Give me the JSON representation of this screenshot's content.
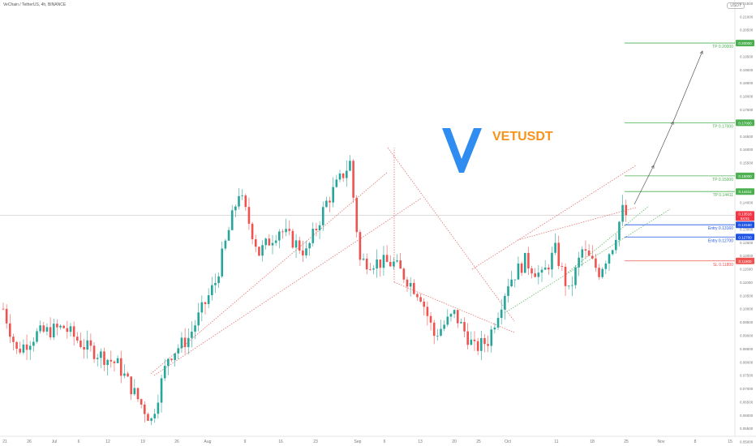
{
  "header": {
    "symbol_line": "VeChain / TetherUS, 4h, BINANCE",
    "currency_button": "USDT"
  },
  "brand": {
    "ticker": "VETUSDT",
    "logo_icon": "vechain-v-logo-icon",
    "logo_color": "#2f8cf0"
  },
  "colors": {
    "up": "#26a69a",
    "down": "#ef5350",
    "tp": "#4caf50",
    "sl": "#ef5350",
    "entry": "#1e53e5",
    "current": "#f23645"
  },
  "chart_data": {
    "type": "candlestick",
    "title": "VETUSDT",
    "x_axis": {
      "tick_labels": [
        "21",
        "26",
        "Jul",
        "6",
        "12",
        "19",
        "26",
        "Aug",
        "9",
        "16",
        "23",
        "Sep",
        "6",
        "13",
        "20",
        "25",
        "Oct",
        "11",
        "18",
        "25",
        "Nov",
        "8",
        "15"
      ]
    },
    "y_axis": {
      "range": [
        0.052,
        0.2162
      ],
      "tick_labels": [
        "0.21500",
        "0.21000",
        "0.20500",
        "0.20000",
        "0.19500",
        "0.19000",
        "0.18500",
        "0.18000",
        "0.17500",
        "0.17000",
        "0.16500",
        "0.16000",
        "0.15500",
        "0.15000",
        "0.14500",
        "0.14000",
        "0.13500",
        "0.13000",
        "0.12500",
        "0.12000",
        "0.11500",
        "0.11000",
        "0.10500",
        "0.10000",
        "0.09500",
        "0.09000",
        "0.08500",
        "0.08000",
        "0.07500",
        "0.07000",
        "0.06500",
        "0.06000",
        "0.05500",
        "0.05000"
      ]
    },
    "price_path": [
      {
        "t": 0,
        "v": 0.1
      },
      {
        "t": 4,
        "v": 0.084
      },
      {
        "t": 10,
        "v": 0.0905
      },
      {
        "t": 18,
        "v": 0.093
      },
      {
        "t": 24,
        "v": 0.086
      },
      {
        "t": 34,
        "v": 0.079
      },
      {
        "t": 40,
        "v": 0.066
      },
      {
        "t": 44,
        "v": 0.058
      },
      {
        "t": 49,
        "v": 0.082
      },
      {
        "t": 55,
        "v": 0.089
      },
      {
        "t": 63,
        "v": 0.11
      },
      {
        "t": 70,
        "v": 0.144
      },
      {
        "t": 76,
        "v": 0.121
      },
      {
        "t": 82,
        "v": 0.13
      },
      {
        "t": 90,
        "v": 0.121
      },
      {
        "t": 96,
        "v": 0.14
      },
      {
        "t": 103,
        "v": 0.155
      },
      {
        "t": 104,
        "v": 0.142
      },
      {
        "t": 106,
        "v": 0.118
      },
      {
        "t": 116,
        "v": 0.117
      },
      {
        "t": 124,
        "v": 0.105
      },
      {
        "t": 128,
        "v": 0.09
      },
      {
        "t": 134,
        "v": 0.098
      },
      {
        "t": 140,
        "v": 0.085
      },
      {
        "t": 144,
        "v": 0.088
      },
      {
        "t": 150,
        "v": 0.11
      },
      {
        "t": 155,
        "v": 0.118
      },
      {
        "t": 160,
        "v": 0.112
      },
      {
        "t": 164,
        "v": 0.122
      },
      {
        "t": 168,
        "v": 0.106
      },
      {
        "t": 172,
        "v": 0.122
      },
      {
        "t": 177,
        "v": 0.114
      },
      {
        "t": 181,
        "v": 0.124
      },
      {
        "t": 184,
        "v": 0.137
      },
      {
        "t": 185,
        "v": 0.1352
      }
    ],
    "annotation_lines": [
      {
        "label": "TP 0.20000",
        "value": 0.2,
        "kind": "tp",
        "tag": "0.20000"
      },
      {
        "label": "TP 0.17000",
        "value": 0.17,
        "kind": "tp",
        "tag": "0.17000"
      },
      {
        "label": "TP 0.15000",
        "value": 0.15,
        "kind": "tp",
        "tag": "0.15000"
      },
      {
        "label": "TP 0.14411",
        "value": 0.14411,
        "kind": "tp",
        "tag": "0.14411"
      },
      {
        "label": "Entry 0.13160",
        "value": 0.1316,
        "kind": "entry",
        "tag": "0.13160"
      },
      {
        "label": "Entry 0.12700",
        "value": 0.127,
        "kind": "entry",
        "tag": "0.12700"
      },
      {
        "label": "SL 0.11800",
        "value": 0.118,
        "kind": "sl",
        "tag": "0.11800"
      }
    ],
    "current_price": {
      "value": 0.1352,
      "tag": "0.13518",
      "countdown": "54:51"
    },
    "grid": false,
    "legend": "none"
  }
}
